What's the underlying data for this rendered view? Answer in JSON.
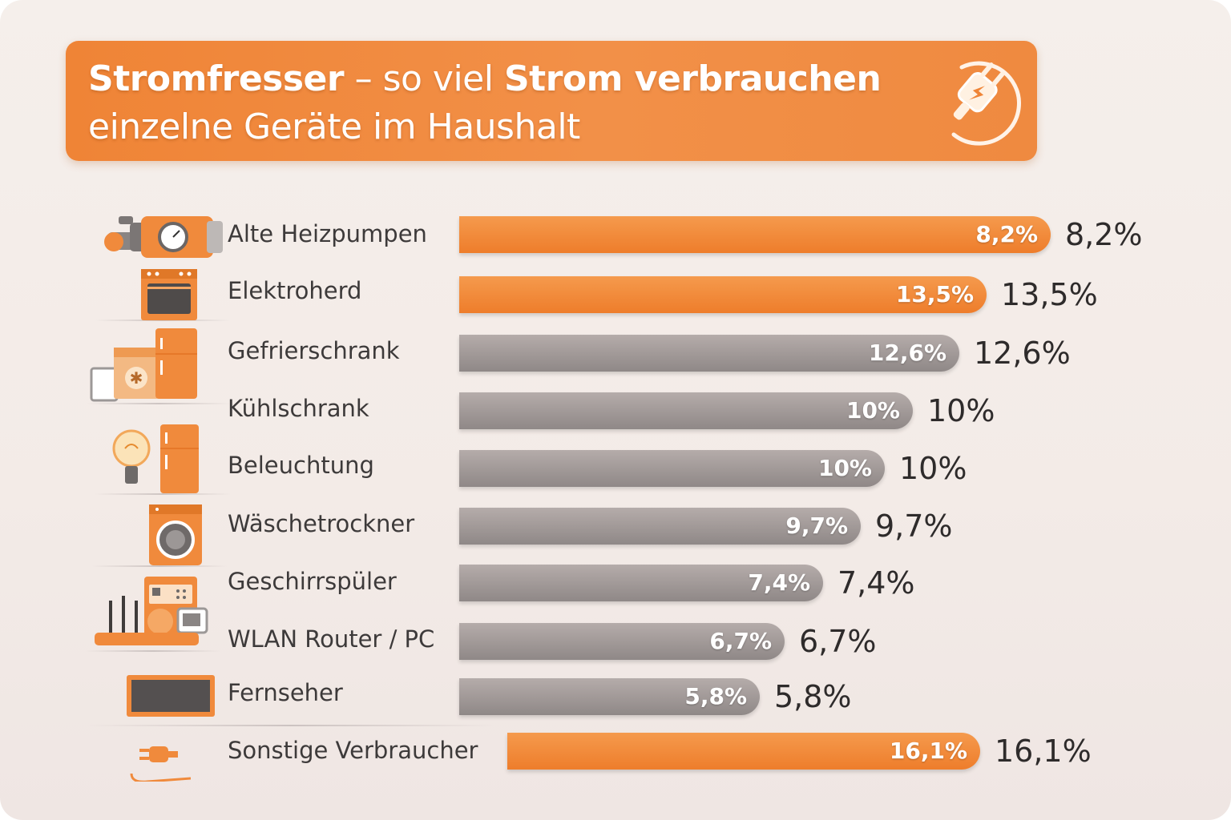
{
  "header": {
    "title_bold_1": "Stromfresser",
    "title_sep": " – so viel ",
    "title_bold_2": "Strom verbrauchen",
    "title_line2": "einzelne Geräte im Haushalt"
  },
  "colors": {
    "accent": "#ef8436",
    "neutral_bar": "#a39b99",
    "text": "#3d3a3a"
  },
  "chart_data": {
    "type": "bar",
    "orientation": "horizontal",
    "unit": "%",
    "categories": [
      "Alte Heizpumpen",
      "Elektroherd",
      "Gefrierschrank",
      "Kühlschrank",
      "Beleuchtung",
      "Wäschetrockner",
      "Geschirrspüler",
      "WLAN Router / PC",
      "Fernseher",
      "Sonstige Verbraucher"
    ],
    "values": [
      8.2,
      13.5,
      12.6,
      10,
      10,
      9.7,
      7.4,
      6.7,
      5.8,
      16.1
    ],
    "value_labels": [
      "8,2%",
      "13,5%",
      "12,6%",
      "10%",
      "10%",
      "9,7%",
      "7,4%",
      "6,7%",
      "5,8%",
      "16,1%"
    ],
    "highlight": [
      true,
      true,
      false,
      false,
      false,
      false,
      false,
      false,
      false,
      true
    ],
    "icons": [
      "heat-pump-icon",
      "stove-icon",
      "freezer-icon",
      "fridge-icon",
      "light-bulb-icon",
      "dryer-icon",
      "dishwasher-icon",
      "router-pc-icon",
      "tv-icon",
      "plug-icon"
    ]
  }
}
